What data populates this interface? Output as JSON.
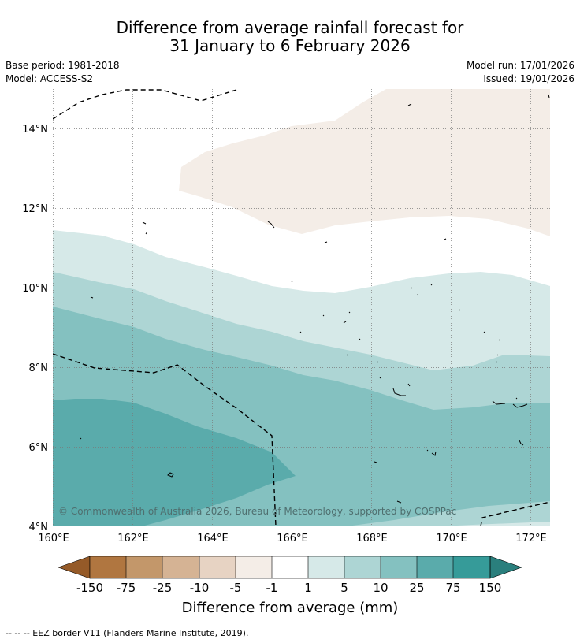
{
  "title_line1": "Difference from average rainfall forecast for",
  "title_line2": "31 January to 6 February 2026",
  "base_period": "Base period: 1981-2018",
  "model": "Model: ACCESS-S2",
  "model_run": "Model run: 17/01/2026",
  "issued": "Issued: 19/01/2026",
  "copyright": "© Commonwealth of Australia 2026, Bureau of Meteorology, supported by COSPPac",
  "map": {
    "lon_range": [
      160,
      172.5
    ],
    "lat_range": [
      4,
      15
    ],
    "lon_ticks": [
      "160°E",
      "162°E",
      "164°E",
      "166°E",
      "168°E",
      "170°E",
      "172°E"
    ],
    "lat_ticks": [
      "4°N",
      "6°N",
      "8°N",
      "10°N",
      "12°N",
      "14°N"
    ]
  },
  "colorbar": {
    "label": "Difference from average (mm)",
    "ticks": [
      "-150",
      "-75",
      "-25",
      "-10",
      "-5",
      "-1",
      "1",
      "5",
      "10",
      "25",
      "75",
      "150"
    ],
    "colors": {
      "lt_neg150": "#955a28",
      "neg150_neg75": "#b07640",
      "neg75_neg25": "#c3976a",
      "neg25_neg10": "#d5b394",
      "neg10_neg5": "#e7d3c3",
      "neg5_neg1": "#f4ede7",
      "neg1_1": "#ffffff",
      "1_5": "#d6e9e8",
      "5_10": "#add5d4",
      "10_25": "#84c1c0",
      "25_75": "#5aabab",
      "75_150": "#369b99",
      "gt_150": "#2a7f7d"
    }
  },
  "footer": "--  --  -- EEZ border V11 (Flanders Marine Institute, 2019)."
}
